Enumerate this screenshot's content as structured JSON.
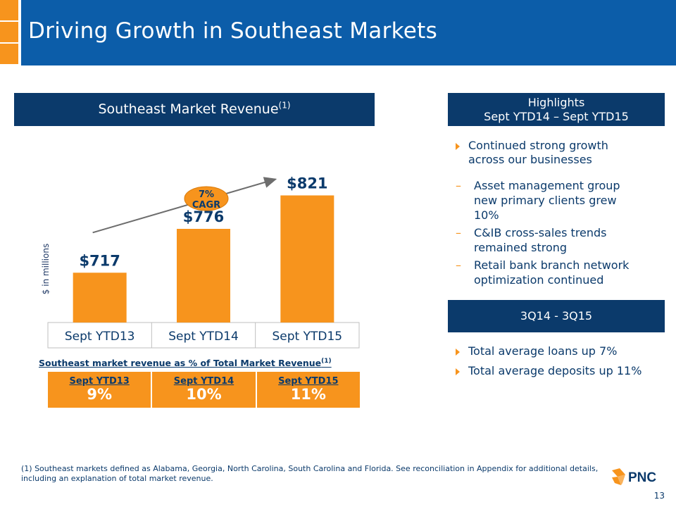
{
  "slide": {
    "title": "Driving Growth in Southeast Markets",
    "page_number": "13",
    "footnote": "(1) Southeast markets defined as Alabama, Georgia, North Carolina, South Carolina and Florida. See reconciliation in Appendix for additional details, including an explanation of total market revenue.",
    "logo_text": "PNC"
  },
  "revenue_panel": {
    "heading": "Southeast Market Revenue",
    "heading_sup": "(1)",
    "y_axis_label": "$ in millions",
    "cagr_label": "7% CAGR",
    "pct_table_title": "Southeast market revenue as % of Total Market Revenue",
    "pct_table_sup": "(1)",
    "pct_table": [
      {
        "label": "Sept YTD13",
        "value": "9%"
      },
      {
        "label": "Sept YTD14",
        "value": "10%"
      },
      {
        "label": "Sept YTD15",
        "value": "11%"
      }
    ]
  },
  "highlights": {
    "heading_line1": "Highlights",
    "heading_line2": "Sept YTD14 – Sept YTD15",
    "main_bullet": "Continued strong growth across our businesses",
    "sub_bullets": [
      "Asset management group new primary clients grew 10%",
      "C&IB cross-sales trends remained strong",
      "Retail bank branch network optimization continued"
    ]
  },
  "quarter": {
    "heading": "3Q14 - 3Q15",
    "bullets": [
      "Total average loans up 7%",
      "Total average deposits up 11%"
    ]
  },
  "colors": {
    "navy": "#0b3a6b",
    "blue": "#0c5da9",
    "orange": "#f7941d"
  },
  "chart_data": {
    "type": "bar",
    "title": "Southeast Market Revenue",
    "categories": [
      "Sept YTD13",
      "Sept YTD14",
      "Sept YTD15"
    ],
    "values": [
      717,
      776,
      821
    ],
    "data_labels": [
      "$717",
      "$776",
      "$821"
    ],
    "ylabel": "$ in millions",
    "ylim": [
      650,
      830
    ],
    "annotation": "7% CAGR",
    "grid": false
  }
}
